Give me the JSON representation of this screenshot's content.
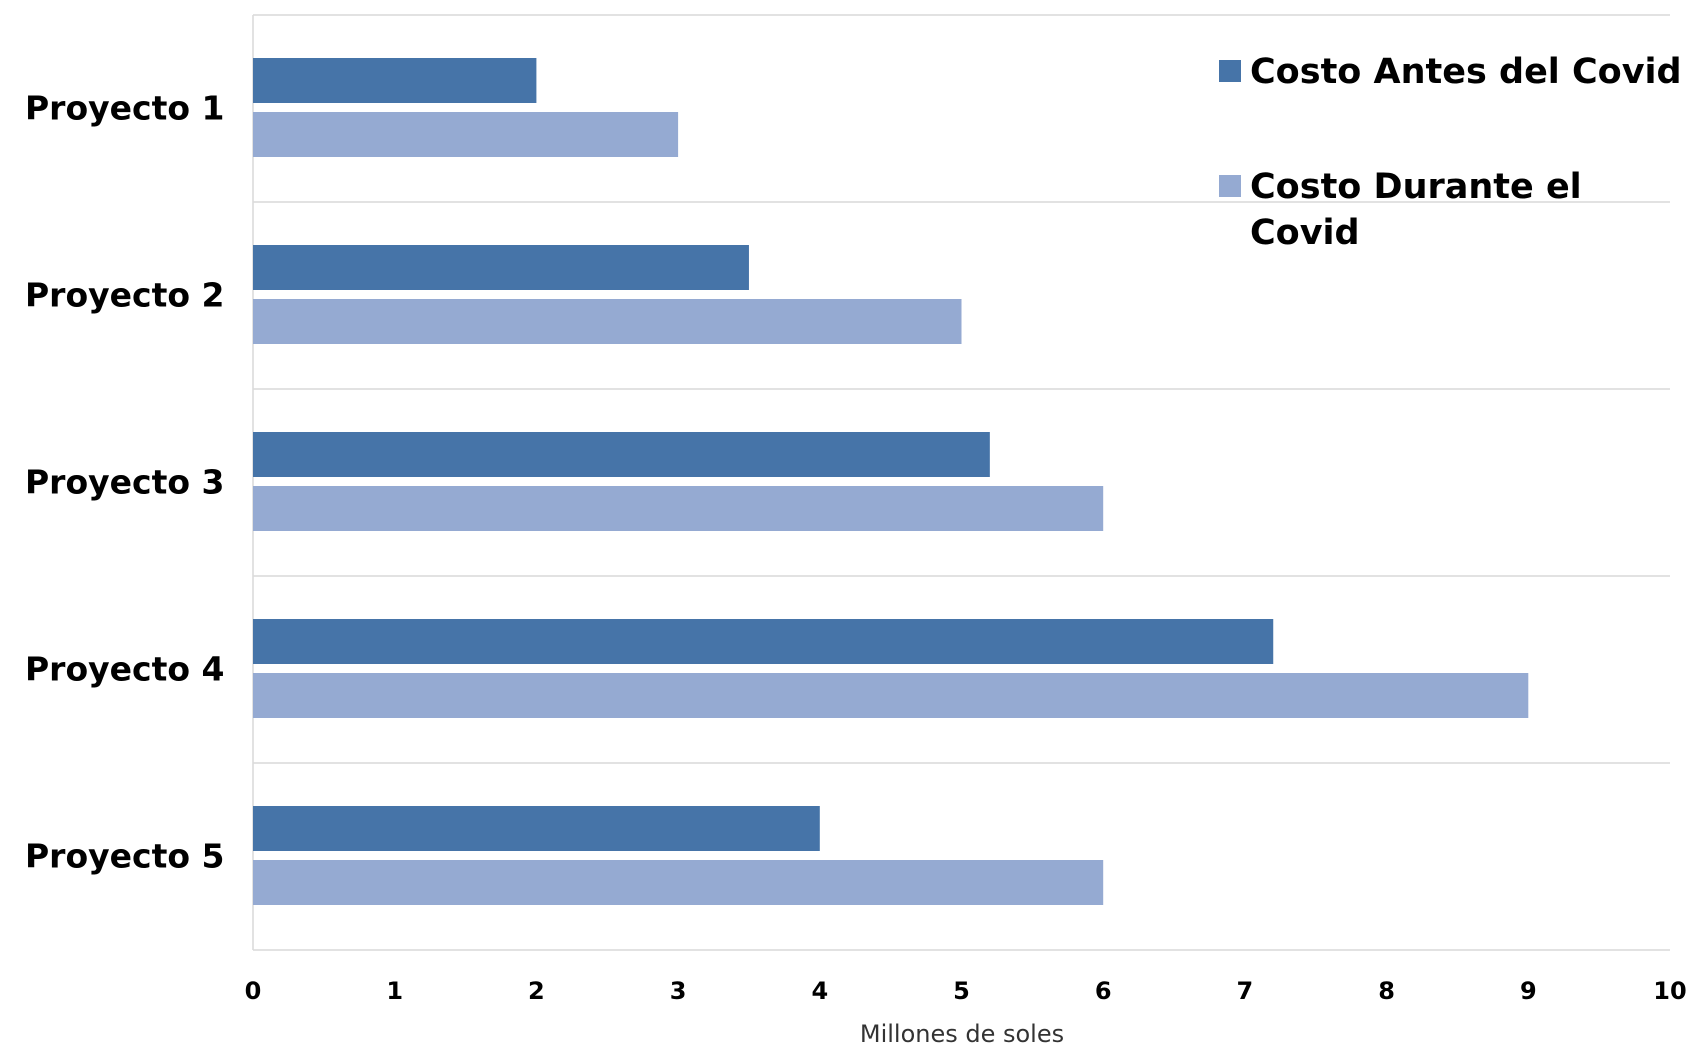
{
  "chart_data": {
    "type": "bar",
    "orientation": "horizontal",
    "categories": [
      "Proyecto 1",
      "Proyecto 2",
      "Proyecto 3",
      "Proyecto 4",
      "Proyecto 5"
    ],
    "series": [
      {
        "name": "Costo Antes del Covid",
        "color": "#4674A8",
        "values": [
          2,
          3.5,
          5.2,
          7.2,
          4
        ]
      },
      {
        "name": "Costo Durante el Covid",
        "color": "#95AAD2",
        "values": [
          3,
          5,
          6,
          9,
          6
        ]
      }
    ],
    "title": "",
    "xlabel": "Millones de soles",
    "ylabel": "",
    "xlim": [
      0,
      10
    ],
    "xticks": [
      "0",
      "1",
      "2",
      "3",
      "4",
      "5",
      "6",
      "7",
      "8",
      "9",
      "10"
    ],
    "grid": "horizontal lines between categories",
    "legend_position": "top-right",
    "legend_lines": [
      [
        "Costo Antes del Covid"
      ],
      [
        "Costo Durante el",
        "Covid"
      ]
    ]
  }
}
